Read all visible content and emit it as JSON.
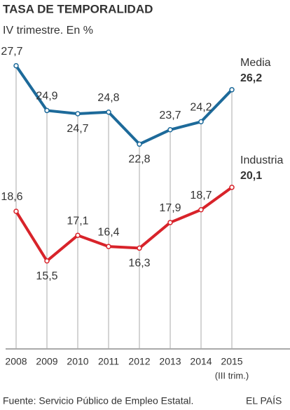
{
  "chart_data": {
    "type": "line",
    "title": "TASA DE TEMPORALIDAD",
    "subtitle": "IV trimestre. En %",
    "categories": [
      "2008",
      "2009",
      "2010",
      "2011",
      "2012",
      "2013",
      "2014",
      "2015"
    ],
    "last_category_note": "(III trim.)",
    "series": [
      {
        "name": "Media",
        "color": "#1d6a9a",
        "values": [
          27.7,
          24.9,
          24.7,
          24.8,
          22.8,
          23.7,
          24.2,
          26.2
        ],
        "value_labels": [
          "27,7",
          "24,9",
          "24,7",
          "24,8",
          "22,8",
          "23,7",
          "24,2",
          "26,2"
        ]
      },
      {
        "name": "Industria",
        "color": "#d8232a",
        "values": [
          18.6,
          15.5,
          17.1,
          16.4,
          16.3,
          17.9,
          18.7,
          20.1
        ],
        "value_labels": [
          "18,6",
          "15,5",
          "17,1",
          "16,4",
          "16,3",
          "17,9",
          "18,7",
          "20,1"
        ]
      }
    ],
    "ylim": [
      10,
      29
    ],
    "source": "Fuente: Servicio Público de Empleo Estatal.",
    "credit": "EL PAÍS"
  }
}
